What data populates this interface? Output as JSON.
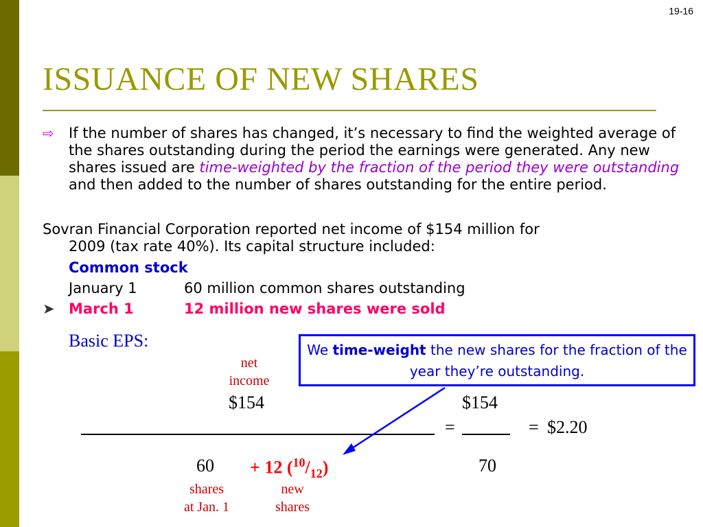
{
  "page_number": "19-16",
  "title": "ISSUANCE OF NEW SHARES",
  "bullet": {
    "text_before": "If the number of shares has changed, it’s necessary to find the weighted average of the shares outstanding during the period the earnings were generated.  Any new shares issued are ",
    "emphasis": "time-weighted by the fraction of the period they were outstanding",
    "text_after": " and then added to the number of shares outstanding for the entire period."
  },
  "sovran": {
    "line1": "Sovran Financial Corporation reported net income of $154 million for",
    "line2": "2009 (tax rate 40%).  Its capital structure included:"
  },
  "common_stock_heading": "Common stock",
  "jan": {
    "date": "January 1",
    "text": "60 million common shares outstanding"
  },
  "mar": {
    "date": "March 1",
    "text": "12 million new shares were sold"
  },
  "basic_eps_label": "Basic EPS:",
  "callout": {
    "prefix": "We ",
    "bold": "time-weight",
    "suffix": " the new shares for the fraction of the year they’re outstanding."
  },
  "formula": {
    "net_label_1": "net",
    "net_label_2": "income",
    "numerator_left": "$154",
    "numerator_right": "$154",
    "equals_1": "=",
    "equals_2": "=",
    "result": "$2.20",
    "denom_60": "60",
    "denom_new": "+ 12 (",
    "denom_frac_num": "10",
    "denom_slash": "/",
    "denom_frac_den": "12",
    "denom_close": ")",
    "denom_total": "70",
    "shares_label_1": "shares",
    "shares_label_2": "at Jan. 1",
    "new_label_1": "new",
    "new_label_2": "shares"
  },
  "colors": {
    "title": "#999900",
    "emphasis": "#9900cc",
    "highlight": "#ff0066",
    "callout_border": "#0000ff"
  }
}
